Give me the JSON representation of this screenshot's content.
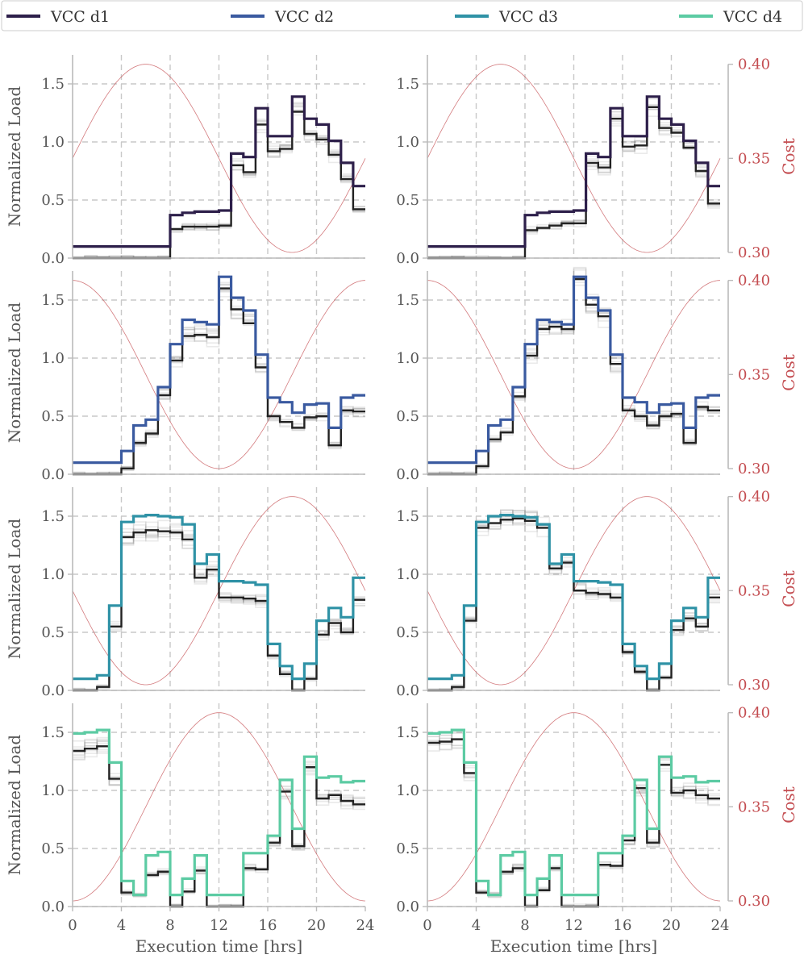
{
  "chart_data": {
    "type": "line",
    "legend": {
      "placement": "top",
      "entries": [
        {
          "name": "VCC d1",
          "color": "#2d1f4a"
        },
        {
          "name": "VCC d2",
          "color": "#3a5aa0"
        },
        {
          "name": "VCC d3",
          "color": "#2f92a6"
        },
        {
          "name": "VCC d4",
          "color": "#5ccba3"
        }
      ]
    },
    "xlabel": "Execution time [hrs]",
    "ylabel": "Normalized Load",
    "y2label": "Cost",
    "xlim": [
      0,
      24
    ],
    "ylim": [
      0,
      1.75
    ],
    "y2lim": [
      0.297,
      0.405
    ],
    "xticks": [
      0,
      4,
      8,
      12,
      16,
      20,
      24
    ],
    "yticks": [
      0.0,
      0.5,
      1.0,
      1.5
    ],
    "y2ticks": [
      0.3,
      0.35,
      0.4
    ],
    "grid": true,
    "cost_color": "#c44e52",
    "base_color": "#222222",
    "rows": [
      {
        "vcc": "VCC d1",
        "color": "#2d1f4a",
        "cost_peak_hour": 6,
        "vcc_load": [
          0.1,
          0.1,
          0.1,
          0.1,
          0.1,
          0.1,
          0.1,
          0.1,
          0.37,
          0.39,
          0.4,
          0.4,
          0.41,
          0.9,
          0.87,
          1.29,
          1.05,
          1.05,
          1.39,
          1.2,
          1.15,
          1.01,
          0.82,
          0.62
        ],
        "panels": [
          {
            "side": "left",
            "load": [
              0,
              0,
              0,
              0,
              0,
              0,
              0,
              0,
              0.25,
              0.27,
              0.27,
              0.27,
              0.28,
              0.8,
              0.74,
              1.15,
              0.92,
              0.94,
              1.26,
              1.07,
              1.02,
              0.89,
              0.68,
              0.42
            ]
          },
          {
            "side": "right",
            "load": [
              0,
              0,
              0,
              0,
              0,
              0,
              0,
              0,
              0.24,
              0.26,
              0.28,
              0.3,
              0.3,
              0.82,
              0.78,
              1.2,
              0.96,
              0.97,
              1.3,
              1.12,
              1.08,
              0.95,
              0.75,
              0.47
            ]
          }
        ]
      },
      {
        "vcc": "VCC d2",
        "color": "#3a5aa0",
        "cost_peak_hour": 0,
        "vcc_load": [
          0.1,
          0.1,
          0.1,
          0.1,
          0.2,
          0.42,
          0.47,
          0.75,
          1.12,
          1.33,
          1.31,
          1.29,
          1.7,
          1.52,
          1.41,
          1.03,
          0.66,
          0.62,
          0.53,
          0.6,
          0.61,
          0.4,
          0.66,
          0.68
        ],
        "panels": [
          {
            "side": "left",
            "load": [
              0,
              0,
              0,
              0,
              0.05,
              0.27,
              0.35,
              0.68,
              0.98,
              1.19,
              1.2,
              1.18,
              1.6,
              1.42,
              1.3,
              0.92,
              0.5,
              0.45,
              0.4,
              0.49,
              0.5,
              0.25,
              0.55,
              0.54
            ]
          },
          {
            "side": "right",
            "load": [
              0,
              0,
              0,
              0,
              0.07,
              0.3,
              0.36,
              0.67,
              1.02,
              1.25,
              1.27,
              1.25,
              1.68,
              1.46,
              1.36,
              0.95,
              0.55,
              0.5,
              0.42,
              0.5,
              0.52,
              0.27,
              0.58,
              0.55
            ]
          }
        ]
      },
      {
        "vcc": "VCC d3",
        "color": "#2f92a6",
        "cost_peak_hour": 18,
        "vcc_load": [
          0.1,
          0.1,
          0.13,
          0.73,
          1.45,
          1.5,
          1.51,
          1.5,
          1.49,
          1.43,
          1.09,
          1.17,
          0.94,
          0.94,
          0.93,
          0.91,
          0.4,
          0.21,
          0.1,
          0.23,
          0.6,
          0.71,
          0.63,
          0.97
        ],
        "panels": [
          {
            "side": "left",
            "load": [
              0,
              0,
              0.03,
              0.55,
              1.32,
              1.36,
              1.38,
              1.37,
              1.36,
              1.3,
              0.97,
              1.04,
              0.8,
              0.8,
              0.79,
              0.77,
              0.3,
              0.14,
              0,
              0.1,
              0.48,
              0.58,
              0.5,
              0.78
            ]
          },
          {
            "side": "right",
            "load": [
              0,
              0,
              0.03,
              0.6,
              1.4,
              1.44,
              1.47,
              1.48,
              1.46,
              1.4,
              1.05,
              1.1,
              0.86,
              0.84,
              0.83,
              0.8,
              0.33,
              0.16,
              0,
              0.11,
              0.52,
              0.62,
              0.55,
              0.8
            ]
          }
        ]
      },
      {
        "vcc": "VCC d4",
        "color": "#5ccba3",
        "cost_peak_hour": 12,
        "vcc_load": [
          1.49,
          1.5,
          1.52,
          1.24,
          0.22,
          0.1,
          0.44,
          0.47,
          0.1,
          0.24,
          0.44,
          0.1,
          0.1,
          0.1,
          0.46,
          0.46,
          0.61,
          1.09,
          0.67,
          1.29,
          1.11,
          1.12,
          1.07,
          1.08
        ],
        "panels": [
          {
            "side": "left",
            "load": [
              1.34,
              1.36,
              1.38,
              1.1,
              0.12,
              0.1,
              0.27,
              0.3,
              0,
              0.13,
              0.31,
              0,
              0,
              0,
              0.33,
              0.32,
              0.55,
              0.99,
              0.52,
              1.2,
              0.93,
              0.96,
              0.91,
              0.88
            ]
          },
          {
            "side": "right",
            "load": [
              1.41,
              1.42,
              1.44,
              1.15,
              0.12,
              0.1,
              0.3,
              0.33,
              0,
              0.14,
              0.33,
              0,
              0,
              0,
              0.36,
              0.35,
              0.57,
              1.02,
              0.55,
              1.22,
              0.98,
              1.0,
              0.96,
              0.93
            ]
          }
        ]
      }
    ]
  }
}
